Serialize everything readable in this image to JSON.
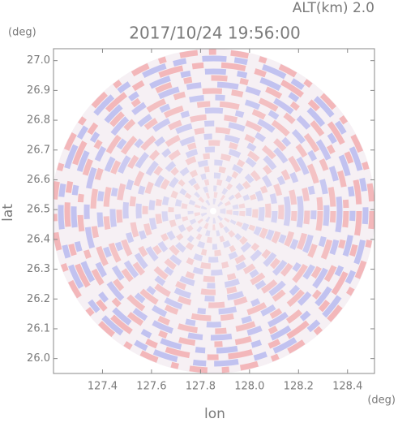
{
  "chart_data": {
    "type": "map",
    "title": "2017/10/24 19:56:00",
    "subtitle": "ALT(km) 2.0",
    "x_label": "lon",
    "y_label": "lat",
    "x_unit": "(deg)",
    "y_unit": "(deg)",
    "xlim": [
      127.2,
      128.51
    ],
    "ylim": [
      25.95,
      27.04
    ],
    "xticks": [
      127.4,
      127.6,
      127.8,
      {
        "value": 128.0,
        "label": "128.0"
      },
      128.2,
      128.4
    ],
    "yticks": [
      {
        "value": 26.0,
        "label": "26.0"
      },
      26.1,
      26.2,
      26.3,
      26.4,
      26.5,
      26.6,
      26.7,
      26.8,
      26.9,
      {
        "value": 27.0,
        "label": "27.0"
      }
    ]
  }
}
